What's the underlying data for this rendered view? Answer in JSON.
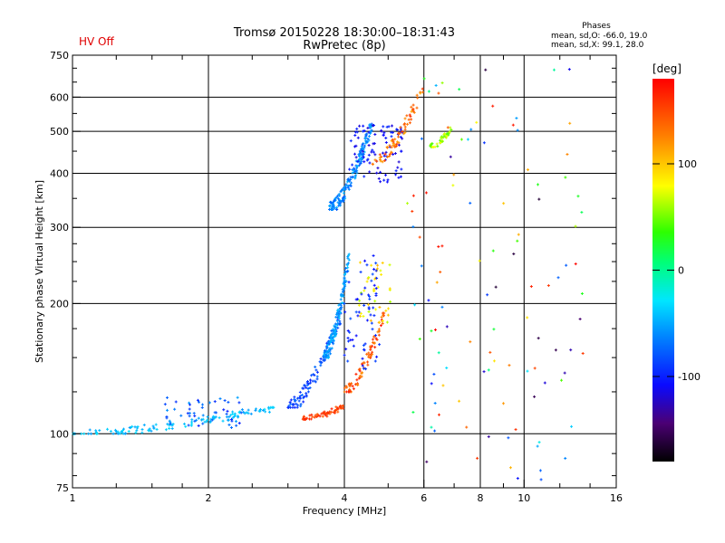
{
  "header": {
    "title_line1": "Tromsø 20150228 18:30:00–18:31:43",
    "title_line2": "RwPretec (8p)",
    "status": "HV Off"
  },
  "stats": {
    "title": "Phases",
    "line1": "mean, sd,O:  -66.0, 19.0",
    "line2": "mean, sd,X:  99.1, 28.0"
  },
  "colorbar": {
    "label": "[deg]",
    "ticks": [
      "100",
      "0",
      "-100"
    ],
    "tick_values": [
      100,
      0,
      -100
    ],
    "range": [
      -180,
      180
    ]
  },
  "chart_data": {
    "type": "scatter",
    "title": "Tromsø 20150228 18:30:00–18:31:43",
    "subtitle": "RwPretec (8p)",
    "xlabel": "Frequency [MHz]",
    "ylabel": "Stationary phase Virtual Height [km]",
    "xscale": "log",
    "yscale": "log",
    "xlim": [
      1,
      16
    ],
    "ylim": [
      75,
      750
    ],
    "x_ticks": [
      1,
      2,
      4,
      6,
      8,
      10,
      16
    ],
    "x_tick_labels": [
      "1",
      "2",
      "4",
      "6",
      "8",
      "10",
      "16"
    ],
    "y_ticks": [
      75,
      100,
      200,
      300,
      400,
      500,
      600,
      750
    ],
    "y_tick_labels": [
      "75",
      "100",
      "200",
      "300",
      "400",
      "500",
      "600",
      "750"
    ],
    "x_gridlines": [
      2,
      4,
      6,
      8,
      10
    ],
    "y_gridlines": [
      100,
      200,
      300,
      400,
      500,
      600
    ],
    "color_by": "phase [deg]",
    "clusters": [
      {
        "name": "E-region low trace",
        "x_range": [
          1.0,
          2.8
        ],
        "y_range": [
          100,
          115
        ],
        "phase_range": [
          -55,
          -30
        ],
        "count": 130
      },
      {
        "name": "E-region blue band",
        "x_range": [
          1.6,
          2.4
        ],
        "y_range": [
          103,
          122
        ],
        "phase_range": [
          -100,
          -50
        ],
        "count": 50
      },
      {
        "name": "F1 lower trace O",
        "x_range": [
          3.0,
          4.0
        ],
        "y_range": [
          115,
          200
        ],
        "phase_range": [
          -100,
          -70
        ],
        "count": 110
      },
      {
        "name": "X-mode trace",
        "x_range": [
          3.2,
          4.0
        ],
        "y_range": [
          108,
          116
        ],
        "phase_range": [
          140,
          170
        ],
        "count": 60
      },
      {
        "name": "F1 cusp O",
        "x_range": [
          3.6,
          4.1
        ],
        "y_range": [
          150,
          260
        ],
        "phase_range": [
          -70,
          -40
        ],
        "count": 140
      },
      {
        "name": "F1 X trace",
        "x_range": [
          4.0,
          4.9
        ],
        "y_range": [
          125,
          190
        ],
        "phase_range": [
          120,
          175
        ],
        "count": 80
      },
      {
        "name": "F1 upper X",
        "x_range": [
          4.3,
          5.1
        ],
        "y_range": [
          180,
          250
        ],
        "phase_range": [
          60,
          110
        ],
        "count": 40
      },
      {
        "name": "F1 blue tail",
        "x_range": [
          4.0,
          4.8
        ],
        "y_range": [
          140,
          260
        ],
        "phase_range": [
          -110,
          -80
        ],
        "count": 60
      },
      {
        "name": "F2 O trace",
        "x_range": [
          3.7,
          4.6
        ],
        "y_range": [
          330,
          520
        ],
        "phase_range": [
          -80,
          -45
        ],
        "count": 170
      },
      {
        "name": "F2 deep blue",
        "x_range": [
          4.1,
          5.4
        ],
        "y_range": [
          380,
          520
        ],
        "phase_range": [
          -120,
          -95
        ],
        "count": 90
      },
      {
        "name": "F2 X trace",
        "x_range": [
          4.6,
          6.0
        ],
        "y_range": [
          420,
          640
        ],
        "phase_range": [
          110,
          160
        ],
        "count": 70
      },
      {
        "name": "F2 green-yellow cusp",
        "x_range": [
          6.2,
          6.9
        ],
        "y_range": [
          460,
          510
        ],
        "phase_range": [
          40,
          80
        ],
        "count": 40
      },
      {
        "name": "Sparse noise",
        "x_range": [
          5.5,
          14.0
        ],
        "y_range": [
          78,
          700
        ],
        "phase_range": [
          -180,
          180
        ],
        "count": 110
      }
    ]
  }
}
